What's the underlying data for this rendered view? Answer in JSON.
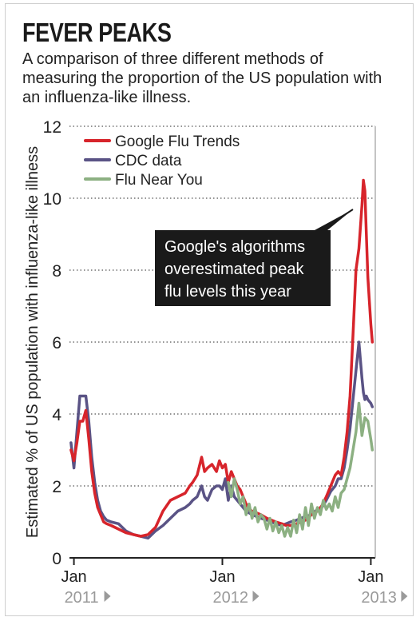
{
  "title": "FEVER PEAKS",
  "subtitle": "A comparison of three different methods of measuring the proportion of the US population with an influenza-like illness.",
  "chart_data": {
    "type": "line",
    "ylabel": "Estimated % of US population with influenza-like illness",
    "ylim": [
      0,
      12
    ],
    "yticks": [
      0,
      2,
      4,
      6,
      8,
      10,
      12
    ],
    "xlim": [
      2010.97,
      2013.03
    ],
    "xticks": [
      {
        "label": "Jan",
        "year": "2011",
        "x": 2011.0
      },
      {
        "label": "Jan",
        "year": "2012",
        "x": 2012.0
      },
      {
        "label": "Jan",
        "year": "2013",
        "x": 2013.0
      }
    ],
    "grid": "horizontal dotted",
    "legend_position": "top-left",
    "annotation": "Google's algorithms overestimated peak flu levels this year",
    "colors": {
      "google": "#d7242b",
      "cdc": "#5a5385",
      "fny": "#8cb082",
      "axis": "#222222",
      "annotation_bg": "#1a1a1a"
    },
    "series": [
      {
        "name": "Google Flu Trends",
        "x": [
          2010.98,
          2011.0,
          2011.02,
          2011.04,
          2011.06,
          2011.08,
          2011.1,
          2011.12,
          2011.14,
          2011.16,
          2011.18,
          2011.2,
          2011.22,
          2011.25,
          2011.3,
          2011.35,
          2011.4,
          2011.45,
          2011.5,
          2011.55,
          2011.6,
          2011.65,
          2011.7,
          2011.75,
          2011.78,
          2011.8,
          2011.83,
          2011.86,
          2011.88,
          2011.9,
          2011.93,
          2011.96,
          2011.98,
          2012.0,
          2012.02,
          2012.04,
          2012.06,
          2012.08,
          2012.1,
          2012.12,
          2012.14,
          2012.16,
          2012.18,
          2012.2,
          2012.23,
          2012.26,
          2012.3,
          2012.33,
          2012.36,
          2012.4,
          2012.43,
          2012.46,
          2012.5,
          2012.53,
          2012.56,
          2012.6,
          2012.64,
          2012.67,
          2012.7,
          2012.73,
          2012.76,
          2012.78,
          2012.8,
          2012.82,
          2012.84,
          2012.86,
          2012.88,
          2012.9,
          2012.92,
          2012.94,
          2012.95,
          2012.96,
          2012.97,
          2012.98,
          2013.0,
          2013.01
        ],
        "values": [
          3.0,
          2.7,
          3.2,
          3.8,
          3.8,
          4.1,
          3.3,
          2.4,
          1.8,
          1.4,
          1.2,
          1.0,
          0.95,
          0.9,
          0.8,
          0.7,
          0.65,
          0.6,
          0.65,
          0.85,
          1.3,
          1.6,
          1.7,
          1.8,
          2.0,
          2.1,
          2.3,
          2.8,
          2.4,
          2.5,
          2.6,
          2.4,
          2.7,
          2.5,
          2.6,
          2.1,
          2.4,
          2.2,
          2.0,
          1.9,
          1.7,
          1.5,
          1.35,
          1.3,
          1.25,
          1.2,
          1.1,
          1.05,
          1.0,
          0.95,
          0.9,
          0.9,
          0.95,
          1.0,
          1.05,
          1.2,
          1.3,
          1.45,
          1.7,
          2.0,
          2.3,
          2.4,
          2.3,
          2.8,
          3.5,
          4.5,
          6.2,
          8.0,
          8.6,
          9.8,
          10.5,
          10.2,
          9.0,
          7.8,
          6.5,
          6.0
        ]
      },
      {
        "name": "CDC data",
        "x": [
          2010.98,
          2011.0,
          2011.02,
          2011.04,
          2011.06,
          2011.08,
          2011.1,
          2011.12,
          2011.14,
          2011.16,
          2011.18,
          2011.2,
          2011.22,
          2011.25,
          2011.3,
          2011.35,
          2011.4,
          2011.45,
          2011.5,
          2011.55,
          2011.6,
          2011.65,
          2011.7,
          2011.75,
          2011.78,
          2011.8,
          2011.83,
          2011.86,
          2011.88,
          2011.9,
          2011.93,
          2011.96,
          2011.98,
          2012.0,
          2012.02,
          2012.04,
          2012.06,
          2012.08,
          2012.1,
          2012.12,
          2012.14,
          2012.16,
          2012.18,
          2012.2,
          2012.23,
          2012.26,
          2012.3,
          2012.33,
          2012.36,
          2012.4,
          2012.43,
          2012.46,
          2012.5,
          2012.53,
          2012.56,
          2012.6,
          2012.64,
          2012.67,
          2012.7,
          2012.73,
          2012.76,
          2012.78,
          2012.8,
          2012.82,
          2012.84,
          2012.86,
          2012.88,
          2012.9,
          2012.92,
          2012.94,
          2012.95,
          2012.96,
          2012.97,
          2012.98,
          2013.0,
          2013.01
        ],
        "values": [
          3.2,
          2.5,
          3.5,
          4.5,
          4.5,
          4.5,
          3.8,
          2.8,
          2.1,
          1.6,
          1.3,
          1.15,
          1.05,
          1.0,
          0.95,
          0.75,
          0.65,
          0.6,
          0.55,
          0.75,
          0.9,
          1.1,
          1.3,
          1.4,
          1.5,
          1.6,
          1.7,
          2.0,
          1.7,
          1.6,
          1.9,
          2.0,
          2.0,
          1.9,
          2.2,
          1.6,
          2.0,
          1.7,
          1.6,
          1.5,
          1.4,
          1.3,
          1.25,
          1.2,
          1.15,
          1.1,
          1.05,
          1.0,
          0.95,
          0.9,
          0.95,
          1.0,
          1.05,
          1.1,
          1.15,
          1.2,
          1.35,
          1.4,
          1.6,
          1.85,
          2.0,
          2.2,
          2.2,
          2.5,
          3.0,
          3.6,
          4.4,
          5.2,
          6.0,
          5.0,
          4.6,
          4.4,
          4.5,
          4.4,
          4.3,
          4.2
        ]
      },
      {
        "name": "Flu Near You",
        "x": [
          2012.04,
          2012.06,
          2012.08,
          2012.1,
          2012.12,
          2012.14,
          2012.16,
          2012.18,
          2012.2,
          2012.22,
          2012.24,
          2012.26,
          2012.28,
          2012.3,
          2012.32,
          2012.34,
          2012.36,
          2012.38,
          2012.4,
          2012.42,
          2012.44,
          2012.46,
          2012.48,
          2012.5,
          2012.52,
          2012.54,
          2012.56,
          2012.58,
          2012.6,
          2012.62,
          2012.64,
          2012.66,
          2012.68,
          2012.7,
          2012.72,
          2012.74,
          2012.76,
          2012.78,
          2012.8,
          2012.82,
          2012.84,
          2012.86,
          2012.88,
          2012.9,
          2012.92,
          2012.94,
          2012.96,
          2012.98,
          2013.0,
          2013.01
        ],
        "values": [
          2.1,
          1.7,
          2.2,
          1.9,
          1.5,
          1.7,
          1.2,
          1.5,
          1.1,
          1.4,
          1.0,
          1.2,
          1.1,
          0.8,
          1.1,
          0.75,
          1.0,
          0.7,
          0.9,
          0.6,
          0.85,
          0.6,
          1.05,
          0.7,
          1.2,
          0.8,
          1.4,
          0.9,
          1.5,
          1.1,
          1.4,
          1.2,
          1.6,
          1.35,
          1.5,
          1.3,
          1.7,
          1.4,
          1.8,
          1.9,
          2.2,
          2.5,
          3.0,
          3.5,
          4.3,
          3.4,
          3.9,
          3.8,
          3.3,
          3.0
        ]
      }
    ]
  }
}
